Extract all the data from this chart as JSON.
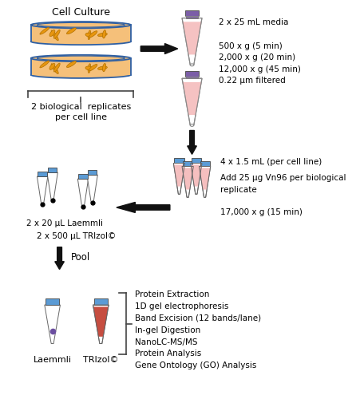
{
  "background_color": "#ffffff",
  "text_color": "#000000",
  "cell_culture_label": "Cell Culture",
  "replicates_label": "2 biological  replicates\nper cell line",
  "step1_line1": "2 x 25 mL media",
  "step1_lines": "500 x g (5 min)\n2,000 x g (20 min)\n12,000 x g (45 min)\n0.22 μm filtered",
  "step2_line1": "4 x 1.5 mL (per cell line)",
  "step2_lines": "Add 25 μg Vn96 per biological\nreplicate\n\n17,000 x g (15 min)",
  "step3_label1": "2 x 20 μL Laemmli",
  "step3_label2": "2 x 500 μL TRIzol©",
  "pool_label": "Pool",
  "laemmli_label": "Laemmli",
  "trizol_label": "TRIzol©",
  "analysis_steps": [
    "Protein Extraction",
    "1D gel electrophoresis",
    "Band Excision (12 bands/lane)",
    "In-gel Digestion",
    "NanoLC-MS/MS",
    "Protein Analysis",
    "Gene Ontology (GO) Analysis"
  ],
  "dish_fill": "#f5c07a",
  "dish_edge": "#2e5fa3",
  "cell_color": "#e8960f",
  "tube_pink": "#f4b8b8",
  "tube_blue": "#5b9bd5",
  "tube_cap_purple": "#7b5ea7",
  "tube_cap_blue": "#5b9bd5",
  "tube_red": "#c0392b",
  "tube_edge": "#888888",
  "arrow_color": "#1a1a1a"
}
